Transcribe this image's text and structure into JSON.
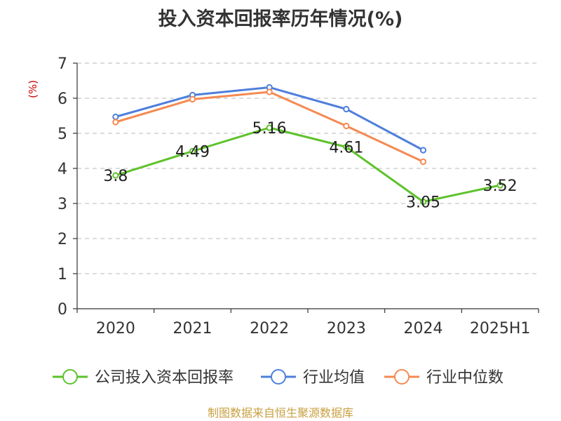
{
  "chart_data": {
    "type": "line",
    "title": "投入资本回报率历年情况(%)",
    "ylabel": "(%)",
    "xlabel": "",
    "categories": [
      "2020",
      "2021",
      "2022",
      "2023",
      "2024",
      "2025H1"
    ],
    "ylim": [
      0,
      7
    ],
    "yticks": [
      0,
      1,
      2,
      3,
      4,
      5,
      6,
      7
    ],
    "grid": true,
    "legend_position": "bottom",
    "series": [
      {
        "name": "公司投入资本回报率",
        "color": "#5ec22b",
        "values": [
          3.8,
          4.49,
          5.16,
          4.61,
          3.05,
          3.52
        ],
        "labels": [
          "3.8",
          "4.49",
          "5.16",
          "4.61",
          "3.05",
          "3.52"
        ]
      },
      {
        "name": "行业均值",
        "color": "#4e7fdc",
        "values": [
          5.47,
          6.09,
          6.31,
          5.69,
          4.52,
          null
        ]
      },
      {
        "name": "行业中位数",
        "color": "#f58a52",
        "values": [
          5.32,
          5.97,
          6.18,
          5.21,
          4.19,
          null
        ]
      }
    ]
  },
  "source": "制图数据来自恒生聚源数据库"
}
